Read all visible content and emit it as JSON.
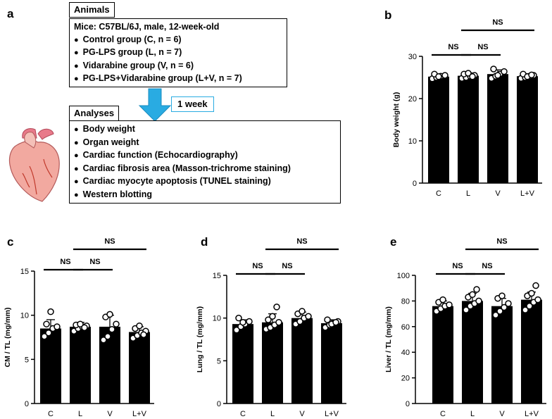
{
  "panel_a": {
    "letter": "a",
    "animals_label": "Animals",
    "mice_line": "Mice: C57BL/6J, male, 12-week-old",
    "groups": [
      "Control group (C, n = 6)",
      "PG-LPS group (L, n = 7)",
      "Vidarabine group (V, n = 6)",
      "PG-LPS+Vidarabine group (L+V, n = 7)"
    ],
    "duration": "1 week",
    "analyses_label": "Analyses",
    "analyses": [
      "Body weight",
      "Organ weight",
      "Cardiac function (Echocardiography)",
      "Cardiac fibrosis area (Masson-trichrome staining)",
      "Cardiac myocyte apoptosis (TUNEL staining)",
      "Western blotting"
    ],
    "arrow_color": "#29abe2",
    "heart_icon": "heart-icon"
  },
  "chart_data": [
    {
      "panel": "b",
      "type": "bar",
      "categories": [
        "C",
        "L",
        "V",
        "L+V"
      ],
      "values": [
        25.2,
        25.4,
        25.8,
        25.3
      ],
      "errors": [
        0.6,
        0.7,
        1.0,
        0.6
      ],
      "points": [
        [
          24.7,
          25.0,
          25.3,
          25.5,
          25.8,
          25.2
        ],
        [
          24.8,
          25.0,
          25.3,
          25.5,
          25.8,
          26.0,
          25.2
        ],
        [
          24.8,
          25.3,
          25.8,
          26.4,
          27.0,
          25.5
        ],
        [
          24.8,
          25.0,
          25.3,
          25.5,
          25.8,
          25.2,
          25.6
        ]
      ],
      "ylabel": "Body weight (g)",
      "ylim": [
        0,
        30
      ],
      "yticks": [
        0,
        10,
        20,
        30
      ],
      "sig": [
        {
          "from": 0,
          "to": 1,
          "label": "NS",
          "level": 0
        },
        {
          "from": 1,
          "to": 2,
          "label": "NS",
          "level": 0
        },
        {
          "from": 1,
          "to": 3,
          "label": "NS",
          "level": 1
        }
      ]
    },
    {
      "panel": "c",
      "type": "bar",
      "categories": [
        "C",
        "L",
        "V",
        "L+V"
      ],
      "values": [
        8.5,
        8.7,
        8.7,
        8.1
      ],
      "errors": [
        1.0,
        0.5,
        1.3,
        0.6
      ],
      "points": [
        [
          7.6,
          8.0,
          8.5,
          8.7,
          9.0,
          10.4
        ],
        [
          8.2,
          8.5,
          8.7,
          8.8,
          8.9,
          9.0,
          8.6
        ],
        [
          7.2,
          7.6,
          8.4,
          9.0,
          9.8,
          10.1
        ],
        [
          7.4,
          7.7,
          8.0,
          8.2,
          8.5,
          8.8,
          7.8
        ]
      ],
      "ylabel": "CM / TL (mg/mm)",
      "ylim": [
        0,
        15
      ],
      "yticks": [
        0,
        5,
        10,
        15
      ],
      "sig": [
        {
          "from": 0,
          "to": 1,
          "label": "NS",
          "level": 0
        },
        {
          "from": 1,
          "to": 2,
          "label": "NS",
          "level": 0
        },
        {
          "from": 1,
          "to": 3,
          "label": "NS",
          "level": 1
        }
      ]
    },
    {
      "panel": "d",
      "type": "bar",
      "categories": [
        "C",
        "L",
        "V",
        "L+V"
      ],
      "values": [
        9.3,
        9.5,
        10.0,
        9.4
      ],
      "errors": [
        0.5,
        1.0,
        0.7,
        0.4
      ],
      "points": [
        [
          8.6,
          9.0,
          9.3,
          9.6,
          10.0,
          9.5
        ],
        [
          8.7,
          8.9,
          9.2,
          9.5,
          9.8,
          10.2,
          11.3
        ],
        [
          9.3,
          9.6,
          10.0,
          10.2,
          10.5,
          10.8
        ],
        [
          8.9,
          9.2,
          9.4,
          9.6,
          9.8,
          9.3,
          9.5
        ]
      ],
      "ylabel": "Lung / TL (mg/mm)",
      "ylim": [
        0,
        15
      ],
      "yticks": [
        0,
        5,
        10,
        15
      ],
      "sig": [
        {
          "from": 0,
          "to": 1,
          "label": "NS",
          "level": 0
        },
        {
          "from": 1,
          "to": 2,
          "label": "NS",
          "level": 0
        },
        {
          "from": 1,
          "to": 3,
          "label": "NS",
          "level": 1
        }
      ]
    },
    {
      "panel": "e",
      "type": "bar",
      "categories": [
        "C",
        "L",
        "V",
        "L+V"
      ],
      "values": [
        76,
        80,
        76,
        81
      ],
      "errors": [
        4,
        6,
        6,
        6
      ],
      "points": [
        [
          72,
          74,
          76,
          77,
          79,
          81
        ],
        [
          73,
          76,
          78,
          80,
          83,
          85,
          89
        ],
        [
          69,
          72,
          75,
          78,
          82,
          84
        ],
        [
          73,
          76,
          79,
          81,
          84,
          86,
          92
        ]
      ],
      "ylabel": "Liver / TL (mg/mm)",
      "ylim": [
        0,
        100
      ],
      "yticks": [
        0,
        20,
        40,
        60,
        80,
        100
      ],
      "sig": [
        {
          "from": 0,
          "to": 1,
          "label": "NS",
          "level": 0
        },
        {
          "from": 1,
          "to": 2,
          "label": "NS",
          "level": 0
        },
        {
          "from": 1,
          "to": 3,
          "label": "NS",
          "level": 1
        }
      ]
    }
  ]
}
